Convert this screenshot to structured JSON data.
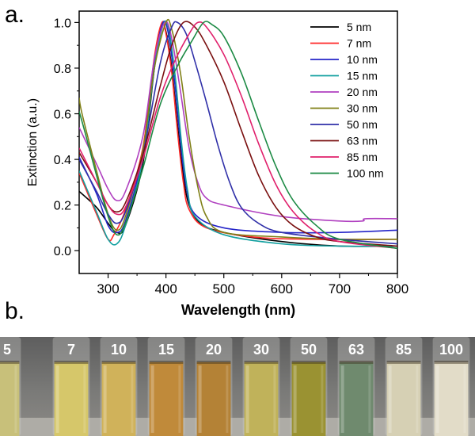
{
  "panel_a_label": "a.",
  "panel_b_label": "b.",
  "chart_data": {
    "type": "line",
    "title": "",
    "xlabel": "Wavelength (nm)",
    "ylabel": "Extinction (a.u.)",
    "xlim": [
      250,
      800
    ],
    "ylim": [
      -0.1,
      1.05
    ],
    "xticks": [
      300,
      400,
      500,
      600,
      700,
      800
    ],
    "yticks": [
      0.0,
      0.2,
      0.4,
      0.6,
      0.8,
      1.0
    ],
    "xtick_labels": [
      "300",
      "400",
      "500",
      "600",
      "700",
      "800"
    ],
    "ytick_labels": [
      "0.0",
      "0.2",
      "0.4",
      "0.6",
      "0.8",
      "1.0"
    ],
    "legend_position": "top-right",
    "grid": false,
    "series": [
      {
        "name": "5 nm",
        "color": "#000000",
        "points": [
          [
            250,
            0.26
          ],
          [
            280,
            0.19
          ],
          [
            300,
            0.12
          ],
          [
            315,
            0.08
          ],
          [
            330,
            0.11
          ],
          [
            360,
            0.38
          ],
          [
            380,
            0.8
          ],
          [
            392,
            0.99
          ],
          [
            400,
            0.96
          ],
          [
            410,
            0.8
          ],
          [
            420,
            0.55
          ],
          [
            430,
            0.33
          ],
          [
            440,
            0.2
          ],
          [
            460,
            0.12
          ],
          [
            500,
            0.08
          ],
          [
            600,
            0.04
          ],
          [
            700,
            0.02
          ],
          [
            800,
            0.02
          ]
        ]
      },
      {
        "name": "7 nm",
        "color": "#ff2a2a",
        "points": [
          [
            250,
            0.34
          ],
          [
            280,
            0.16
          ],
          [
            300,
            0.05
          ],
          [
            310,
            0.07
          ],
          [
            330,
            0.18
          ],
          [
            360,
            0.45
          ],
          [
            380,
            0.85
          ],
          [
            393,
            1.0
          ],
          [
            400,
            0.95
          ],
          [
            410,
            0.78
          ],
          [
            420,
            0.52
          ],
          [
            430,
            0.3
          ],
          [
            440,
            0.18
          ],
          [
            470,
            0.1
          ],
          [
            550,
            0.06
          ],
          [
            650,
            0.05
          ],
          [
            800,
            0.05
          ]
        ]
      },
      {
        "name": "10 nm",
        "color": "#2424c8",
        "points": [
          [
            250,
            0.41
          ],
          [
            280,
            0.25
          ],
          [
            300,
            0.11
          ],
          [
            315,
            0.08
          ],
          [
            330,
            0.13
          ],
          [
            360,
            0.42
          ],
          [
            380,
            0.82
          ],
          [
            395,
            1.0
          ],
          [
            405,
            0.94
          ],
          [
            415,
            0.74
          ],
          [
            425,
            0.48
          ],
          [
            435,
            0.28
          ],
          [
            450,
            0.16
          ],
          [
            500,
            0.1
          ],
          [
            600,
            0.08
          ],
          [
            700,
            0.08
          ],
          [
            800,
            0.09
          ]
        ]
      },
      {
        "name": "15 nm",
        "color": "#14a0a0",
        "points": [
          [
            250,
            0.35
          ],
          [
            280,
            0.17
          ],
          [
            300,
            0.05
          ],
          [
            315,
            0.03
          ],
          [
            330,
            0.11
          ],
          [
            360,
            0.4
          ],
          [
            380,
            0.8
          ],
          [
            397,
            1.0
          ],
          [
            407,
            0.94
          ],
          [
            417,
            0.74
          ],
          [
            427,
            0.47
          ],
          [
            437,
            0.27
          ],
          [
            450,
            0.15
          ],
          [
            500,
            0.07
          ],
          [
            600,
            0.03
          ],
          [
            700,
            0.02
          ],
          [
            800,
            0.02
          ]
        ]
      },
      {
        "name": "20 nm",
        "color": "#b040c0",
        "points": [
          [
            250,
            0.54
          ],
          [
            280,
            0.38
          ],
          [
            300,
            0.27
          ],
          [
            315,
            0.22
          ],
          [
            330,
            0.26
          ],
          [
            360,
            0.5
          ],
          [
            380,
            0.84
          ],
          [
            398,
            1.0
          ],
          [
            410,
            0.93
          ],
          [
            425,
            0.7
          ],
          [
            440,
            0.45
          ],
          [
            455,
            0.3
          ],
          [
            470,
            0.23
          ],
          [
            500,
            0.2
          ],
          [
            600,
            0.15
          ],
          [
            700,
            0.13
          ],
          [
            740,
            0.13
          ],
          [
            745,
            0.14
          ],
          [
            800,
            0.14
          ]
        ]
      },
      {
        "name": "30 nm",
        "color": "#808018",
        "points": [
          [
            250,
            0.67
          ],
          [
            255,
            0.6
          ],
          [
            280,
            0.35
          ],
          [
            300,
            0.16
          ],
          [
            315,
            0.09
          ],
          [
            330,
            0.15
          ],
          [
            360,
            0.44
          ],
          [
            380,
            0.8
          ],
          [
            400,
            1.0
          ],
          [
            410,
            0.97
          ],
          [
            425,
            0.78
          ],
          [
            440,
            0.5
          ],
          [
            455,
            0.28
          ],
          [
            470,
            0.15
          ],
          [
            500,
            0.08
          ],
          [
            600,
            0.06
          ],
          [
            700,
            0.05
          ],
          [
            800,
            0.05
          ]
        ]
      },
      {
        "name": "50 nm",
        "color": "#3030a8",
        "points": [
          [
            250,
            0.4
          ],
          [
            280,
            0.26
          ],
          [
            300,
            0.16
          ],
          [
            315,
            0.12
          ],
          [
            330,
            0.17
          ],
          [
            360,
            0.42
          ],
          [
            390,
            0.82
          ],
          [
            410,
            0.98
          ],
          [
            420,
            1.0
          ],
          [
            435,
            0.95
          ],
          [
            450,
            0.83
          ],
          [
            470,
            0.65
          ],
          [
            490,
            0.46
          ],
          [
            510,
            0.3
          ],
          [
            530,
            0.19
          ],
          [
            560,
            0.12
          ],
          [
            600,
            0.08
          ],
          [
            700,
            0.05
          ],
          [
            800,
            0.03
          ]
        ]
      },
      {
        "name": "63 nm",
        "color": "#7a1010",
        "points": [
          [
            250,
            0.43
          ],
          [
            280,
            0.3
          ],
          [
            300,
            0.2
          ],
          [
            315,
            0.17
          ],
          [
            330,
            0.21
          ],
          [
            360,
            0.42
          ],
          [
            390,
            0.72
          ],
          [
            410,
            0.9
          ],
          [
            430,
            1.0
          ],
          [
            450,
            0.98
          ],
          [
            470,
            0.9
          ],
          [
            500,
            0.74
          ],
          [
            530,
            0.53
          ],
          [
            560,
            0.33
          ],
          [
            590,
            0.19
          ],
          [
            620,
            0.11
          ],
          [
            660,
            0.06
          ],
          [
            700,
            0.04
          ],
          [
            800,
            0.02
          ]
        ]
      },
      {
        "name": "85 nm",
        "color": "#e0206c",
        "points": [
          [
            250,
            0.45
          ],
          [
            280,
            0.3
          ],
          [
            300,
            0.2
          ],
          [
            315,
            0.16
          ],
          [
            330,
            0.19
          ],
          [
            360,
            0.4
          ],
          [
            390,
            0.67
          ],
          [
            415,
            0.83
          ],
          [
            440,
            0.95
          ],
          [
            455,
            1.0
          ],
          [
            470,
            0.98
          ],
          [
            500,
            0.86
          ],
          [
            530,
            0.68
          ],
          [
            560,
            0.47
          ],
          [
            590,
            0.29
          ],
          [
            620,
            0.17
          ],
          [
            660,
            0.08
          ],
          [
            700,
            0.04
          ],
          [
            800,
            0.01
          ]
        ]
      },
      {
        "name": "100 nm",
        "color": "#1c8a44",
        "points": [
          [
            250,
            0.61
          ],
          [
            260,
            0.52
          ],
          [
            280,
            0.33
          ],
          [
            300,
            0.15
          ],
          [
            315,
            0.07
          ],
          [
            330,
            0.12
          ],
          [
            360,
            0.36
          ],
          [
            390,
            0.64
          ],
          [
            420,
            0.81
          ],
          [
            445,
            0.92
          ],
          [
            465,
            1.0
          ],
          [
            480,
            0.99
          ],
          [
            500,
            0.94
          ],
          [
            530,
            0.78
          ],
          [
            560,
            0.57
          ],
          [
            590,
            0.37
          ],
          [
            620,
            0.22
          ],
          [
            660,
            0.11
          ],
          [
            700,
            0.05
          ],
          [
            800,
            0.01
          ]
        ]
      }
    ]
  },
  "vials": [
    {
      "label": "5",
      "tint": "#c8c07a"
    },
    {
      "label": "7",
      "tint": "#d6c76a"
    },
    {
      "label": "10",
      "tint": "#d0b25a"
    },
    {
      "label": "15",
      "tint": "#c08a3a"
    },
    {
      "label": "20",
      "tint": "#b48236"
    },
    {
      "label": "30",
      "tint": "#c0b25a"
    },
    {
      "label": "50",
      "tint": "#9a9232"
    },
    {
      "label": "63",
      "tint": "#6f8a6e"
    },
    {
      "label": "85",
      "tint": "#d6d0b4"
    },
    {
      "label": "100",
      "tint": "#e2dcc8"
    }
  ]
}
